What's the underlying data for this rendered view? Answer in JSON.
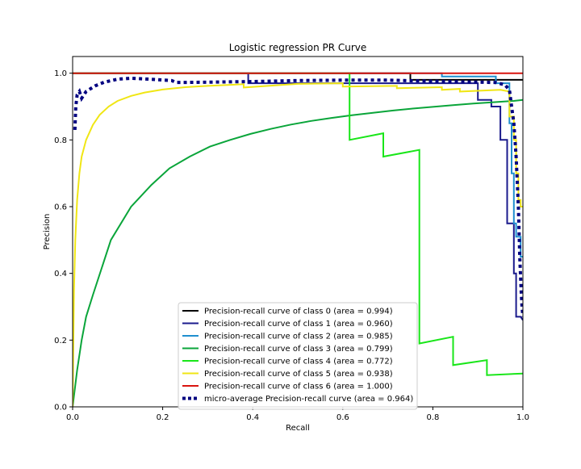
{
  "chart_data": {
    "type": "line",
    "title": "Logistic regression PR Curve",
    "xlabel": "Recall",
    "ylabel": "Precision",
    "xlim": [
      0.0,
      1.0
    ],
    "ylim": [
      0.0,
      1.05
    ],
    "x_ticks": [
      0.0,
      0.2,
      0.4,
      0.6,
      0.8,
      1.0
    ],
    "y_ticks": [
      0.0,
      0.2,
      0.4,
      0.6,
      0.8,
      1.0
    ],
    "x_tick_labels": [
      "0.0",
      "0.2",
      "0.4",
      "0.6",
      "0.8",
      "1.0"
    ],
    "y_tick_labels": [
      "0.0",
      "0.2",
      "0.4",
      "0.6",
      "0.8",
      "1.0"
    ],
    "grid": false,
    "legend_position": "lower-center",
    "series": [
      {
        "name": "Precision-recall curve of class 0 (area = 0.994)",
        "color": "#000000",
        "style": "solid",
        "points": [
          [
            0.0,
            1.0
          ],
          [
            0.75,
            1.0
          ],
          [
            0.75,
            0.98
          ],
          [
            1.0,
            0.98
          ]
        ]
      },
      {
        "name": "Precision-recall curve of class 1 (area = 0.960)",
        "color": "#1a1a8c",
        "style": "solid",
        "points": [
          [
            0.0,
            1.0
          ],
          [
            0.39,
            1.0
          ],
          [
            0.39,
            0.97
          ],
          [
            0.9,
            0.97
          ],
          [
            0.9,
            0.92
          ],
          [
            0.93,
            0.92
          ],
          [
            0.93,
            0.9
          ],
          [
            0.95,
            0.9
          ],
          [
            0.95,
            0.8
          ],
          [
            0.965,
            0.8
          ],
          [
            0.965,
            0.55
          ],
          [
            0.98,
            0.55
          ],
          [
            0.98,
            0.4
          ],
          [
            0.985,
            0.4
          ],
          [
            0.985,
            0.27
          ],
          [
            0.995,
            0.27
          ],
          [
            0.995,
            0.27
          ],
          [
            1.0,
            0.26
          ]
        ]
      },
      {
        "name": "Precision-recall curve of class 2 (area = 0.985)",
        "color": "#1f8fcf",
        "style": "solid",
        "points": [
          [
            0.0,
            1.0
          ],
          [
            0.82,
            1.0
          ],
          [
            0.82,
            0.99
          ],
          [
            0.94,
            0.99
          ],
          [
            0.94,
            0.97
          ],
          [
            0.97,
            0.97
          ],
          [
            0.97,
            0.85
          ],
          [
            0.975,
            0.85
          ],
          [
            0.975,
            0.7
          ],
          [
            0.98,
            0.7
          ],
          [
            0.98,
            0.55
          ],
          [
            0.985,
            0.55
          ],
          [
            0.985,
            0.51
          ],
          [
            0.995,
            0.51
          ],
          [
            0.995,
            0.45
          ],
          [
            1.0,
            0.45
          ]
        ]
      },
      {
        "name": "Precision-recall curve of class 3 (area = 0.799)",
        "color": "#0aa53a",
        "style": "solid",
        "points": [
          [
            0.0,
            0.0
          ],
          [
            0.01,
            0.11
          ],
          [
            0.02,
            0.2
          ],
          [
            0.03,
            0.27
          ],
          [
            0.045,
            0.335
          ],
          [
            0.085,
            0.5
          ],
          [
            0.13,
            0.6
          ],
          [
            0.175,
            0.665
          ],
          [
            0.215,
            0.715
          ],
          [
            0.26,
            0.75
          ],
          [
            0.305,
            0.78
          ],
          [
            0.35,
            0.8
          ],
          [
            0.395,
            0.818
          ],
          [
            0.44,
            0.833
          ],
          [
            0.485,
            0.846
          ],
          [
            0.53,
            0.857
          ],
          [
            0.575,
            0.866
          ],
          [
            0.62,
            0.874
          ],
          [
            0.665,
            0.881
          ],
          [
            0.71,
            0.888
          ],
          [
            0.755,
            0.894
          ],
          [
            0.8,
            0.899
          ],
          [
            0.845,
            0.904
          ],
          [
            0.89,
            0.909
          ],
          [
            0.935,
            0.913
          ],
          [
            0.98,
            0.917
          ],
          [
            1.0,
            0.92
          ]
        ]
      },
      {
        "name": "Precision-recall curve of class 4 (area = 0.772)",
        "color": "#19e619",
        "style": "solid",
        "points": [
          [
            0.0,
            1.0
          ],
          [
            0.615,
            1.0
          ],
          [
            0.615,
            0.8
          ],
          [
            0.69,
            0.82
          ],
          [
            0.69,
            0.75
          ],
          [
            0.77,
            0.77
          ],
          [
            0.77,
            0.19
          ],
          [
            0.845,
            0.21
          ],
          [
            0.845,
            0.125
          ],
          [
            0.92,
            0.14
          ],
          [
            0.92,
            0.095
          ],
          [
            1.0,
            0.1
          ]
        ]
      },
      {
        "name": "Precision-recall curve of class 5 (area = 0.938)",
        "color": "#f0e614",
        "style": "solid",
        "points": [
          [
            0.0,
            0.0
          ],
          [
            0.003,
            0.35
          ],
          [
            0.006,
            0.5
          ],
          [
            0.01,
            0.62
          ],
          [
            0.015,
            0.7
          ],
          [
            0.02,
            0.75
          ],
          [
            0.03,
            0.8
          ],
          [
            0.045,
            0.845
          ],
          [
            0.06,
            0.875
          ],
          [
            0.08,
            0.9
          ],
          [
            0.1,
            0.917
          ],
          [
            0.13,
            0.932
          ],
          [
            0.16,
            0.942
          ],
          [
            0.2,
            0.951
          ],
          [
            0.25,
            0.958
          ],
          [
            0.3,
            0.962
          ],
          [
            0.35,
            0.965
          ],
          [
            0.38,
            0.967
          ],
          [
            0.38,
            0.957
          ],
          [
            0.5,
            0.968
          ],
          [
            0.6,
            0.97
          ],
          [
            0.6,
            0.96
          ],
          [
            0.72,
            0.962
          ],
          [
            0.72,
            0.955
          ],
          [
            0.82,
            0.958
          ],
          [
            0.82,
            0.95
          ],
          [
            0.86,
            0.953
          ],
          [
            0.86,
            0.945
          ],
          [
            0.95,
            0.95
          ],
          [
            0.97,
            0.945
          ],
          [
            0.97,
            0.87
          ],
          [
            0.98,
            0.87
          ],
          [
            0.98,
            0.8
          ],
          [
            0.985,
            0.8
          ],
          [
            0.985,
            0.7
          ],
          [
            0.99,
            0.7
          ],
          [
            0.99,
            0.62
          ],
          [
            0.995,
            0.62
          ],
          [
            0.995,
            0.6
          ],
          [
            1.0,
            0.6
          ]
        ]
      },
      {
        "name": "Precision-recall curve of class 6 (area = 1.000)",
        "color": "#d9140f",
        "style": "solid",
        "points": [
          [
            0.0,
            1.0
          ],
          [
            1.0,
            1.0
          ]
        ]
      },
      {
        "name": "micro-average Precision-recall curve (area = 0.964)",
        "color": "#000080",
        "style": "dotted",
        "points": [
          [
            0.005,
            0.83
          ],
          [
            0.007,
            0.9
          ],
          [
            0.01,
            0.935
          ],
          [
            0.015,
            0.945
          ],
          [
            0.02,
            0.925
          ],
          [
            0.03,
            0.945
          ],
          [
            0.05,
            0.962
          ],
          [
            0.07,
            0.973
          ],
          [
            0.1,
            0.982
          ],
          [
            0.13,
            0.985
          ],
          [
            0.17,
            0.982
          ],
          [
            0.22,
            0.978
          ],
          [
            0.23,
            0.972
          ],
          [
            0.3,
            0.973
          ],
          [
            0.4,
            0.975
          ],
          [
            0.5,
            0.978
          ],
          [
            0.6,
            0.979
          ],
          [
            0.7,
            0.979
          ],
          [
            0.8,
            0.976
          ],
          [
            0.9,
            0.973
          ],
          [
            0.94,
            0.972
          ],
          [
            0.96,
            0.965
          ],
          [
            0.97,
            0.95
          ],
          [
            0.975,
            0.9
          ],
          [
            0.98,
            0.85
          ],
          [
            0.985,
            0.75
          ],
          [
            0.99,
            0.6
          ],
          [
            0.993,
            0.45
          ],
          [
            0.996,
            0.35
          ],
          [
            0.998,
            0.3
          ],
          [
            1.0,
            0.27
          ]
        ]
      }
    ]
  }
}
